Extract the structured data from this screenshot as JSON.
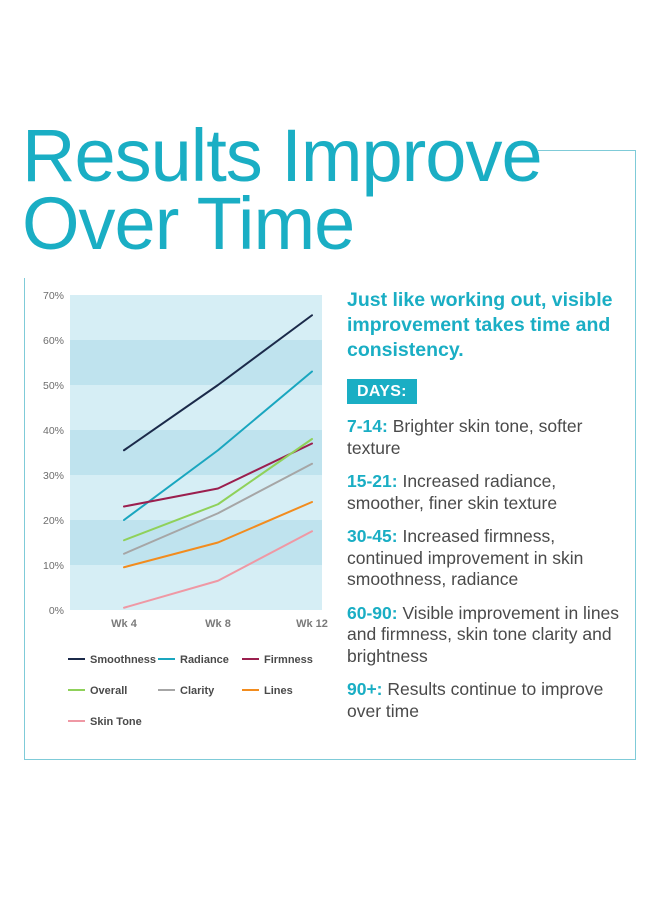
{
  "title": {
    "line1": "Results Improve",
    "line2": "Over Time"
  },
  "intro": "Just like working out, visible improvement takes time and consistency.",
  "days_label": "DAYS:",
  "days": [
    {
      "range": "7-14:",
      "text": "Brighter skin tone, softer texture"
    },
    {
      "range": "15-21:",
      "text": "Increased radiance, smoother, finer skin texture"
    },
    {
      "range": "30-45:",
      "text": "Increased firmness, continued improvement in skin smoothness, radiance"
    },
    {
      "range": "60-90:",
      "text": "Visible improvement in lines and firmness, skin tone clarity and brightness"
    },
    {
      "range": "90+:",
      "text": "Results continue to improve over time"
    }
  ],
  "colors": {
    "accent": "#1aaec4",
    "plot_band_light": "#d6eef5",
    "plot_band_dark": "#bfe3ee"
  },
  "chart_data": {
    "type": "line",
    "categories": [
      "Wk 4",
      "Wk 8",
      "Wk 12"
    ],
    "ylim": [
      0,
      70
    ],
    "yticks": [
      0,
      10,
      20,
      30,
      40,
      50,
      60,
      70
    ],
    "ytick_labels": [
      "0%",
      "10%",
      "20%",
      "30%",
      "40%",
      "50%",
      "60%",
      "70%"
    ],
    "series": [
      {
        "name": "Smoothness",
        "color": "#1b2a4a",
        "values": [
          35.5,
          50,
          65.5
        ]
      },
      {
        "name": "Radiance",
        "color": "#1aa6bf",
        "values": [
          20,
          35.5,
          53
        ]
      },
      {
        "name": "Firmness",
        "color": "#9b1f4e",
        "values": [
          23,
          27,
          37
        ]
      },
      {
        "name": "Overall",
        "color": "#8fd15a",
        "values": [
          15.5,
          23.5,
          38
        ]
      },
      {
        "name": "Clarity",
        "color": "#a6a6a6",
        "values": [
          12.5,
          21.5,
          32.5
        ]
      },
      {
        "name": "Lines",
        "color": "#f28c1e",
        "values": [
          9.5,
          15,
          24
        ]
      },
      {
        "name": "Skin Tone",
        "color": "#ef98a4",
        "values": [
          0.5,
          6.5,
          17.5
        ]
      }
    ],
    "legend_position": "bottom"
  }
}
